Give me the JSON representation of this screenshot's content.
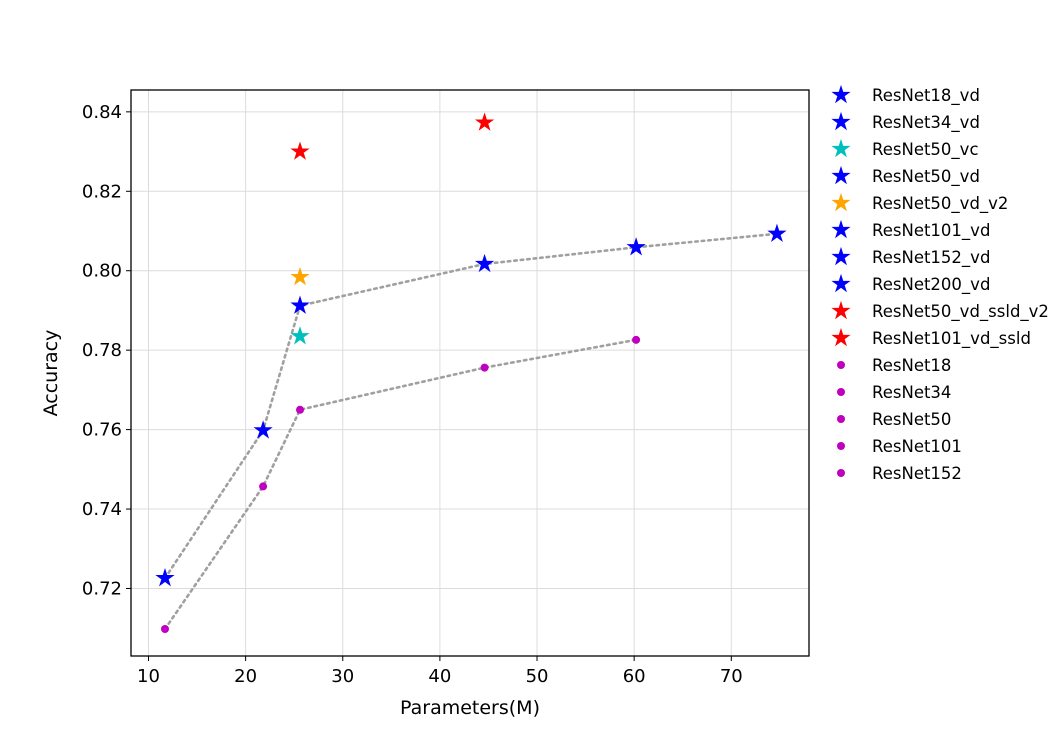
{
  "chart_data": {
    "type": "scatter",
    "xlabel": "Parameters(M)",
    "ylabel": "Accuracy",
    "xlim": [
      8.2,
      78.0
    ],
    "ylim": [
      0.703,
      0.8455
    ],
    "xticks": [
      10,
      20,
      30,
      40,
      50,
      60,
      70
    ],
    "yticks": [
      0.72,
      0.74,
      0.76,
      0.78,
      0.8,
      0.82,
      0.84
    ],
    "grid": true,
    "legend_position": "outside-right",
    "series": [
      {
        "name": "ResNet18_vd",
        "marker": "star",
        "color": "#0000ff",
        "x": [
          11.7
        ],
        "y": [
          0.7226
        ]
      },
      {
        "name": "ResNet34_vd",
        "marker": "star",
        "color": "#0000ff",
        "x": [
          21.8
        ],
        "y": [
          0.7598
        ]
      },
      {
        "name": "ResNet50_vc",
        "marker": "star",
        "color": "#00bfbf",
        "x": [
          25.6
        ],
        "y": [
          0.7835
        ]
      },
      {
        "name": "ResNet50_vd",
        "marker": "star",
        "color": "#0000ff",
        "x": [
          25.6
        ],
        "y": [
          0.7912
        ]
      },
      {
        "name": "ResNet50_vd_v2",
        "marker": "star",
        "color": "#ffa500",
        "x": [
          25.6
        ],
        "y": [
          0.7984
        ]
      },
      {
        "name": "ResNet101_vd",
        "marker": "star",
        "color": "#0000ff",
        "x": [
          44.6
        ],
        "y": [
          0.8017
        ]
      },
      {
        "name": "ResNet152_vd",
        "marker": "star",
        "color": "#0000ff",
        "x": [
          60.2
        ],
        "y": [
          0.8059
        ]
      },
      {
        "name": "ResNet200_vd",
        "marker": "star",
        "color": "#0000ff",
        "x": [
          74.7
        ],
        "y": [
          0.8093
        ]
      },
      {
        "name": "ResNet50_vd_ssld_v2",
        "marker": "star",
        "color": "#ff0000",
        "x": [
          25.6
        ],
        "y": [
          0.83
        ]
      },
      {
        "name": "ResNet101_vd_ssld",
        "marker": "star",
        "color": "#ff0000",
        "x": [
          44.6
        ],
        "y": [
          0.8373
        ]
      },
      {
        "name": "ResNet18",
        "marker": "circle",
        "color": "#bf00bf",
        "x": [
          11.7
        ],
        "y": [
          0.7098
        ]
      },
      {
        "name": "ResNet34",
        "marker": "circle",
        "color": "#bf00bf",
        "x": [
          21.8
        ],
        "y": [
          0.7457
        ]
      },
      {
        "name": "ResNet50",
        "marker": "circle",
        "color": "#bf00bf",
        "x": [
          25.6
        ],
        "y": [
          0.765
        ]
      },
      {
        "name": "ResNet101",
        "marker": "circle",
        "color": "#bf00bf",
        "x": [
          44.6
        ],
        "y": [
          0.7756
        ]
      },
      {
        "name": "ResNet152",
        "marker": "circle",
        "color": "#bf00bf",
        "x": [
          60.2
        ],
        "y": [
          0.7826
        ]
      }
    ],
    "trend_lines": [
      {
        "style": "dotted",
        "color": "#a0a0a0",
        "x": [
          11.7,
          21.8,
          25.6,
          44.6,
          60.2,
          74.7
        ],
        "y": [
          0.7226,
          0.7598,
          0.7912,
          0.8017,
          0.8059,
          0.8093
        ]
      },
      {
        "style": "dotted",
        "color": "#a0a0a0",
        "x": [
          11.7,
          21.8,
          25.6,
          44.6,
          60.2
        ],
        "y": [
          0.7098,
          0.7457,
          0.765,
          0.7756,
          0.7826
        ]
      }
    ]
  }
}
